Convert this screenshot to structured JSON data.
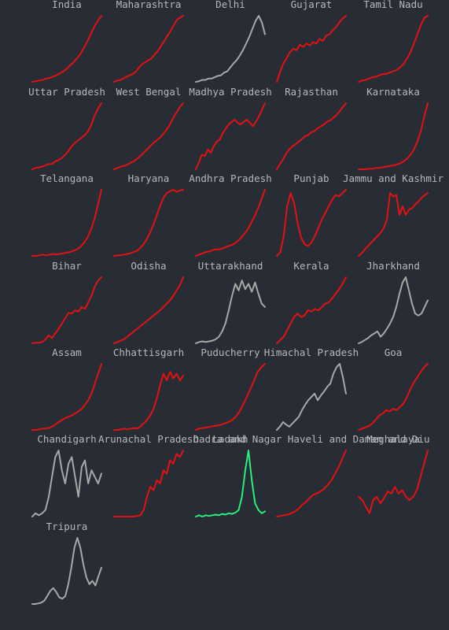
{
  "colors": {
    "background": "#282c34",
    "title": "#b4b8bf",
    "rising": "#e31212",
    "falling": "#a8a8a8",
    "improving": "#29f07a"
  },
  "chart_data": {
    "type": "line",
    "grid": false,
    "axes_visible": false,
    "layout": "small-multiples grid, 5 columns",
    "panels": [
      {
        "title": "India",
        "status": "rising",
        "values": [
          0.0,
          0.01,
          0.02,
          0.03,
          0.05,
          0.06,
          0.08,
          0.1,
          0.13,
          0.16,
          0.2,
          0.25,
          0.3,
          0.36,
          0.43,
          0.52,
          0.62,
          0.73,
          0.84,
          0.93,
          1.0
        ]
      },
      {
        "title": "Maharashtra",
        "status": "rising",
        "values": [
          0.0,
          0.02,
          0.03,
          0.05,
          0.08,
          0.1,
          0.12,
          0.16,
          0.22,
          0.27,
          0.3,
          0.33,
          0.36,
          0.42,
          0.47,
          0.55,
          0.62,
          0.7,
          0.77,
          0.86,
          0.94,
          0.97,
          1.0
        ]
      },
      {
        "title": "Delhi",
        "status": "falling",
        "values": [
          0.0,
          0.01,
          0.03,
          0.03,
          0.05,
          0.05,
          0.07,
          0.09,
          0.1,
          0.14,
          0.16,
          0.22,
          0.28,
          0.33,
          0.4,
          0.48,
          0.58,
          0.68,
          0.8,
          0.92,
          1.0,
          0.9,
          0.72
        ]
      },
      {
        "title": "Gujarat",
        "status": "rising",
        "values": [
          0.0,
          0.15,
          0.28,
          0.36,
          0.45,
          0.5,
          0.48,
          0.56,
          0.53,
          0.58,
          0.55,
          0.6,
          0.58,
          0.65,
          0.62,
          0.7,
          0.72,
          0.78,
          0.83,
          0.9,
          0.96,
          1.0
        ]
      },
      {
        "title": "Tamil Nadu",
        "status": "rising",
        "values": [
          0.0,
          0.02,
          0.03,
          0.05,
          0.07,
          0.08,
          0.1,
          0.12,
          0.12,
          0.14,
          0.16,
          0.18,
          0.22,
          0.27,
          0.35,
          0.45,
          0.58,
          0.72,
          0.86,
          0.97,
          1.0
        ]
      },
      {
        "title": "Uttar Pradesh",
        "status": "rising",
        "values": [
          0.0,
          0.02,
          0.03,
          0.04,
          0.06,
          0.08,
          0.08,
          0.12,
          0.14,
          0.17,
          0.22,
          0.28,
          0.35,
          0.4,
          0.44,
          0.48,
          0.52,
          0.58,
          0.68,
          0.82,
          0.92,
          1.0
        ]
      },
      {
        "title": "West Bengal",
        "status": "rising",
        "values": [
          0.0,
          0.02,
          0.04,
          0.05,
          0.07,
          0.1,
          0.12,
          0.16,
          0.2,
          0.25,
          0.3,
          0.35,
          0.4,
          0.44,
          0.48,
          0.54,
          0.6,
          0.68,
          0.78,
          0.86,
          0.94,
          1.0
        ]
      },
      {
        "title": "Madhya Pradesh",
        "status": "rising",
        "values": [
          0.0,
          0.1,
          0.22,
          0.2,
          0.3,
          0.25,
          0.35,
          0.42,
          0.45,
          0.55,
          0.62,
          0.68,
          0.72,
          0.75,
          0.7,
          0.68,
          0.72,
          0.75,
          0.7,
          0.65,
          0.72,
          0.8,
          0.9,
          1.0
        ]
      },
      {
        "title": "Rajasthan",
        "status": "rising",
        "values": [
          0.0,
          0.08,
          0.15,
          0.24,
          0.3,
          0.35,
          0.38,
          0.42,
          0.46,
          0.5,
          0.52,
          0.56,
          0.58,
          0.62,
          0.65,
          0.68,
          0.72,
          0.74,
          0.78,
          0.82,
          0.88,
          0.94,
          1.0
        ]
      },
      {
        "title": "Karnataka",
        "status": "rising",
        "values": [
          0.0,
          0.0,
          0.0,
          0.01,
          0.01,
          0.02,
          0.02,
          0.03,
          0.04,
          0.05,
          0.06,
          0.07,
          0.09,
          0.12,
          0.16,
          0.22,
          0.3,
          0.42,
          0.58,
          0.8,
          1.0
        ]
      },
      {
        "title": "Telangana",
        "status": "rising",
        "values": [
          0.0,
          0.0,
          0.01,
          0.02,
          0.01,
          0.02,
          0.03,
          0.02,
          0.03,
          0.04,
          0.05,
          0.06,
          0.08,
          0.1,
          0.14,
          0.2,
          0.28,
          0.4,
          0.56,
          0.78,
          1.0
        ]
      },
      {
        "title": "Haryana",
        "status": "rising",
        "values": [
          0.0,
          0.01,
          0.01,
          0.02,
          0.03,
          0.04,
          0.06,
          0.08,
          0.12,
          0.18,
          0.26,
          0.36,
          0.48,
          0.62,
          0.76,
          0.88,
          0.95,
          0.98,
          1.0,
          0.97,
          0.99,
          1.0
        ]
      },
      {
        "title": "Andhra Pradesh",
        "status": "rising",
        "values": [
          0.0,
          0.02,
          0.04,
          0.06,
          0.07,
          0.09,
          0.1,
          0.1,
          0.12,
          0.14,
          0.16,
          0.18,
          0.22,
          0.27,
          0.33,
          0.4,
          0.5,
          0.6,
          0.72,
          0.86,
          1.0
        ]
      },
      {
        "title": "Punjab",
        "status": "rising",
        "values": [
          0.0,
          0.05,
          0.3,
          0.75,
          0.95,
          0.8,
          0.5,
          0.28,
          0.18,
          0.15,
          0.2,
          0.3,
          0.42,
          0.55,
          0.65,
          0.75,
          0.85,
          0.92,
          0.9,
          0.95,
          1.0
        ]
      },
      {
        "title": "Jammu and Kashmir",
        "status": "rising",
        "values": [
          0.0,
          0.04,
          0.1,
          0.15,
          0.2,
          0.25,
          0.3,
          0.35,
          0.42,
          0.55,
          0.95,
          0.9,
          0.92,
          0.62,
          0.75,
          0.62,
          0.7,
          0.72,
          0.78,
          0.82,
          0.88,
          0.92,
          0.95
        ]
      },
      {
        "title": "Bihar",
        "status": "rising",
        "values": [
          0.0,
          0.01,
          0.01,
          0.02,
          0.06,
          0.12,
          0.08,
          0.15,
          0.22,
          0.3,
          0.38,
          0.46,
          0.45,
          0.5,
          0.48,
          0.55,
          0.52,
          0.62,
          0.72,
          0.86,
          0.95,
          1.0
        ]
      },
      {
        "title": "Odisha",
        "status": "rising",
        "values": [
          0.0,
          0.02,
          0.04,
          0.06,
          0.1,
          0.14,
          0.18,
          0.22,
          0.26,
          0.3,
          0.34,
          0.38,
          0.42,
          0.46,
          0.5,
          0.55,
          0.6,
          0.65,
          0.72,
          0.8,
          0.88,
          1.0
        ]
      },
      {
        "title": "Uttarakhand",
        "status": "falling",
        "values": [
          0.0,
          0.02,
          0.03,
          0.02,
          0.03,
          0.04,
          0.06,
          0.1,
          0.18,
          0.3,
          0.5,
          0.72,
          0.9,
          0.8,
          0.95,
          0.82,
          0.9,
          0.78,
          0.92,
          0.75,
          0.6,
          0.55
        ]
      },
      {
        "title": "Kerala",
        "status": "rising",
        "values": [
          0.0,
          0.05,
          0.1,
          0.2,
          0.3,
          0.4,
          0.45,
          0.4,
          0.42,
          0.5,
          0.48,
          0.52,
          0.5,
          0.55,
          0.6,
          0.62,
          0.68,
          0.75,
          0.82,
          0.9,
          1.0
        ]
      },
      {
        "title": "Jharkhand",
        "status": "falling",
        "values": [
          0.0,
          0.02,
          0.05,
          0.08,
          0.12,
          0.15,
          0.18,
          0.1,
          0.15,
          0.22,
          0.3,
          0.4,
          0.55,
          0.75,
          0.92,
          1.0,
          0.8,
          0.6,
          0.45,
          0.42,
          0.45,
          0.55,
          0.65
        ]
      },
      {
        "title": "Assam",
        "status": "rising",
        "values": [
          0.0,
          0.0,
          0.01,
          0.02,
          0.02,
          0.03,
          0.05,
          0.08,
          0.12,
          0.15,
          0.18,
          0.2,
          0.22,
          0.25,
          0.28,
          0.32,
          0.38,
          0.45,
          0.55,
          0.7,
          0.85,
          1.0
        ]
      },
      {
        "title": "Chhattisgarh",
        "status": "rising",
        "values": [
          0.0,
          0.0,
          0.01,
          0.02,
          0.01,
          0.02,
          0.03,
          0.02,
          0.05,
          0.1,
          0.15,
          0.22,
          0.32,
          0.48,
          0.68,
          0.85,
          0.75,
          0.88,
          0.78,
          0.85,
          0.75,
          0.82
        ]
      },
      {
        "title": "Puducherry",
        "status": "rising",
        "values": [
          0.0,
          0.02,
          0.03,
          0.04,
          0.05,
          0.06,
          0.07,
          0.08,
          0.1,
          0.12,
          0.15,
          0.2,
          0.28,
          0.38,
          0.5,
          0.62,
          0.75,
          0.88,
          0.95,
          1.0
        ]
      },
      {
        "title": "Himachal Pradesh",
        "status": "falling",
        "values": [
          0.0,
          0.05,
          0.12,
          0.08,
          0.05,
          0.1,
          0.15,
          0.2,
          0.3,
          0.38,
          0.45,
          0.5,
          0.55,
          0.45,
          0.52,
          0.58,
          0.65,
          0.7,
          0.85,
          0.95,
          1.0,
          0.8,
          0.55
        ]
      },
      {
        "title": "Goa",
        "status": "rising",
        "values": [
          0.0,
          0.02,
          0.04,
          0.06,
          0.1,
          0.16,
          0.22,
          0.25,
          0.3,
          0.28,
          0.32,
          0.3,
          0.35,
          0.4,
          0.5,
          0.62,
          0.72,
          0.8,
          0.88,
          0.95,
          1.0
        ]
      },
      {
        "title": "Chandigarh",
        "status": "falling",
        "values": [
          0.0,
          0.05,
          0.02,
          0.05,
          0.1,
          0.3,
          0.6,
          0.9,
          1.0,
          0.7,
          0.5,
          0.8,
          0.9,
          0.6,
          0.3,
          0.75,
          0.85,
          0.5,
          0.7,
          0.6,
          0.5,
          0.65
        ]
      },
      {
        "title": "Arunachal Pradesh",
        "status": "rising",
        "values": [
          0.0,
          0.0,
          0.0,
          0.0,
          0.0,
          0.0,
          0.0,
          0.01,
          0.02,
          0.1,
          0.3,
          0.45,
          0.4,
          0.55,
          0.5,
          0.7,
          0.65,
          0.85,
          0.8,
          0.95,
          0.9,
          1.0
        ]
      },
      {
        "title": "Ladakh",
        "status": "improving",
        "values": [
          0.0,
          0.02,
          0.0,
          0.02,
          0.01,
          0.02,
          0.03,
          0.02,
          0.04,
          0.03,
          0.05,
          0.04,
          0.06,
          0.1,
          0.3,
          0.7,
          1.0,
          0.55,
          0.2,
          0.1,
          0.05,
          0.08
        ]
      },
      {
        "title": "Dadra and Nagar Haveli and Daman and Diu",
        "status": "rising",
        "values": [
          0.0,
          0.01,
          0.02,
          0.03,
          0.05,
          0.08,
          0.12,
          0.18,
          0.22,
          0.28,
          0.33,
          0.35,
          0.38,
          0.42,
          0.48,
          0.55,
          0.65,
          0.75,
          0.88,
          1.0
        ]
      },
      {
        "title": "Meghalaya",
        "status": "rising",
        "values": [
          0.3,
          0.25,
          0.15,
          0.05,
          0.25,
          0.3,
          0.2,
          0.28,
          0.38,
          0.35,
          0.45,
          0.35,
          0.4,
          0.3,
          0.25,
          0.3,
          0.4,
          0.6,
          0.8,
          1.0
        ]
      },
      {
        "title": "Tripura",
        "status": "falling",
        "values": [
          0.0,
          0.0,
          0.01,
          0.02,
          0.05,
          0.12,
          0.2,
          0.24,
          0.18,
          0.1,
          0.08,
          0.12,
          0.3,
          0.55,
          0.85,
          1.0,
          0.85,
          0.6,
          0.4,
          0.3,
          0.35,
          0.28,
          0.42,
          0.55
        ]
      }
    ]
  }
}
